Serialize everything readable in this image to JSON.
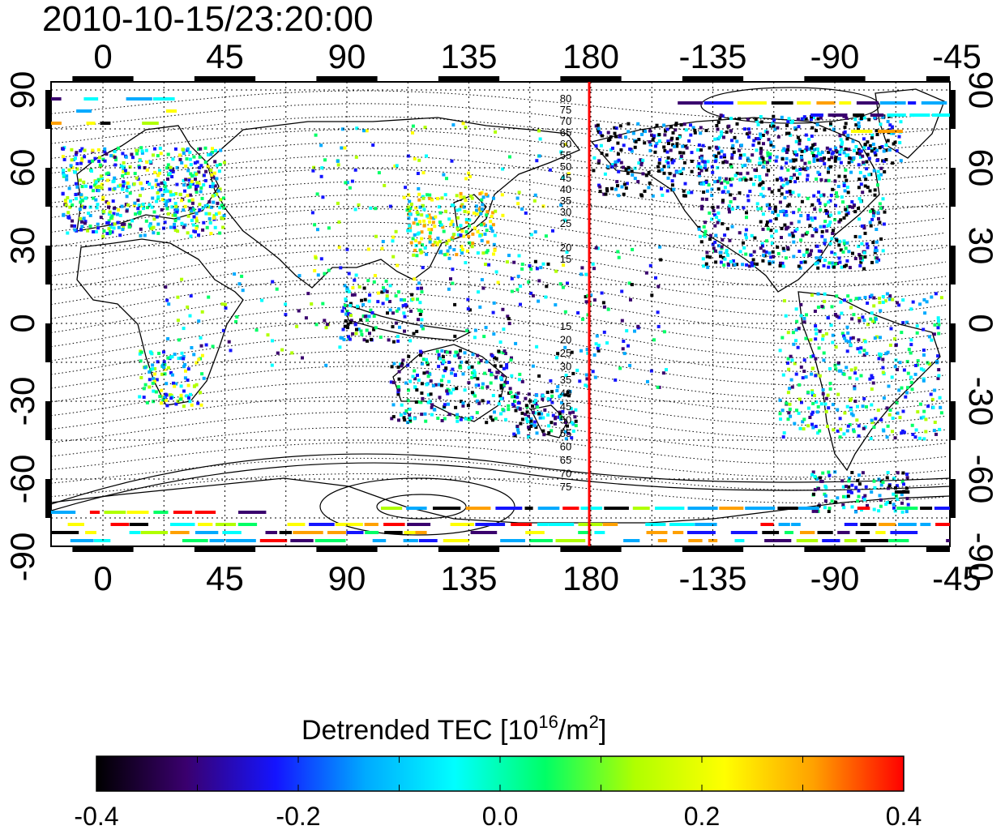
{
  "title": "2010-10-15/23:20:00",
  "map": {
    "top_lon_labels": [
      "0",
      "45",
      "90",
      "135",
      "180",
      "-135",
      "-90",
      "-45"
    ],
    "bottom_lon_labels": [
      "0",
      "45",
      "90",
      "135",
      "180",
      "-135",
      "-90",
      "-45"
    ],
    "left_lat_labels": [
      "90",
      "60",
      "30",
      "0",
      "-30",
      "-60",
      "-90"
    ],
    "right_lat_labels": [
      "90",
      "60",
      "30",
      "0",
      "-30",
      "-60",
      "-90"
    ],
    "contour_labels_north": [
      "80",
      "75",
      "70",
      "65",
      "60",
      "55",
      "50",
      "45",
      "40",
      "35",
      "30",
      "25",
      "20",
      "15"
    ],
    "contour_labels_south": [
      "15",
      "20",
      "25",
      "30",
      "35",
      "40",
      "45",
      "50",
      "55",
      "60",
      "65",
      "70",
      "75"
    ],
    "terminator_color": "#ff0000",
    "terminator_lon": -170
  },
  "colorbar": {
    "title_prefix": "Detrended TEC  [10",
    "title_sup1": "16",
    "title_mid": "/m",
    "title_sup2": "2",
    "title_suffix": "]",
    "tick_labels": [
      "-0.4",
      "-0.2",
      "0.0",
      "0.2",
      "0.4"
    ],
    "min": -0.4,
    "max": 0.4,
    "colors": [
      "#000000",
      "#3a006e",
      "#1414ff",
      "#00aaff",
      "#00ffff",
      "#00ff66",
      "#b0ff00",
      "#ffff00",
      "#ffa000",
      "#ff0000"
    ]
  }
}
